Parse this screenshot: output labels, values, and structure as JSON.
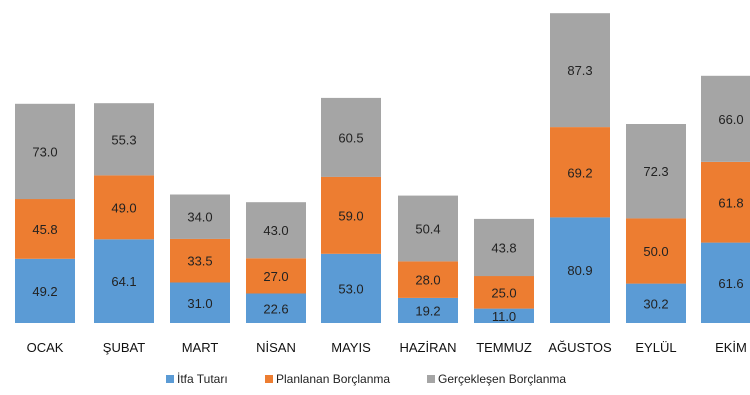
{
  "chart_data": {
    "type": "bar",
    "stacked": true,
    "title": "",
    "xlabel": "",
    "ylabel": "",
    "ylim": [
      0,
      245
    ],
    "grid": false,
    "legend_position": "bottom",
    "categories": [
      "OCAK",
      "ŞUBAT",
      "MART",
      "NİSAN",
      "MAYIS",
      "HAZİRAN",
      "TEMMUZ",
      "AĞUSTOS",
      "EYLÜL",
      "EKİM"
    ],
    "series": [
      {
        "name": "İtfa Tutarı",
        "color": "#5b9bd5",
        "values": [
          49.2,
          64.1,
          31.0,
          22.6,
          53.0,
          19.2,
          11.0,
          80.9,
          30.2,
          61.6
        ]
      },
      {
        "name": "Planlanan Borçlanma",
        "color": "#ed7d31",
        "values": [
          45.8,
          49.0,
          33.5,
          27.0,
          59.0,
          28.0,
          25.0,
          69.2,
          50.0,
          61.8
        ]
      },
      {
        "name": "Gerçekleşen Borçlanma",
        "color": "#a5a5a5",
        "values": [
          73.0,
          55.3,
          34.0,
          43.0,
          60.5,
          50.4,
          43.8,
          87.3,
          72.3,
          66.0
        ]
      }
    ]
  }
}
